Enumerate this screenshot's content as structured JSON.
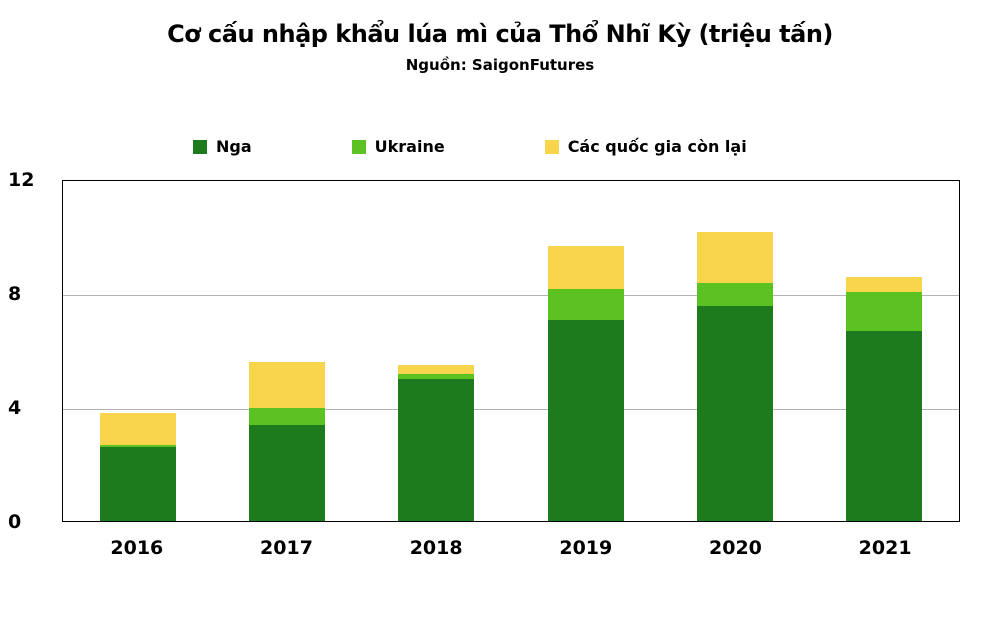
{
  "title": "Cơ cấu nhập khẩu lúa mì của Thổ Nhĩ Kỳ (triệu tấn)",
  "subtitle": "Nguồn: SaigonFutures",
  "chart_data": {
    "type": "bar",
    "stacked": true,
    "title": "Cơ cấu nhập khẩu lúa mì của Thổ Nhĩ Kỳ (triệu tấn)",
    "subtitle": "Nguồn: SaigonFutures",
    "categories": [
      "2016",
      "2017",
      "2018",
      "2019",
      "2020",
      "2021"
    ],
    "series": [
      {
        "name": "Nga",
        "color": "#1d7a1d",
        "values": [
          2.6,
          3.4,
          5.0,
          7.1,
          7.6,
          6.7
        ]
      },
      {
        "name": "Ukraine",
        "color": "#5bc222",
        "values": [
          0.1,
          0.6,
          0.2,
          1.1,
          0.8,
          1.4
        ]
      },
      {
        "name": "Các quốc gia còn lại",
        "color": "#f9d54e",
        "values": [
          1.1,
          1.6,
          0.3,
          1.5,
          1.8,
          0.5
        ]
      }
    ],
    "xlabel": "",
    "ylabel": "",
    "ylim": [
      0,
      12
    ],
    "yticks": [
      0,
      4,
      8,
      12
    ],
    "grid": true,
    "legend_position": "top"
  }
}
